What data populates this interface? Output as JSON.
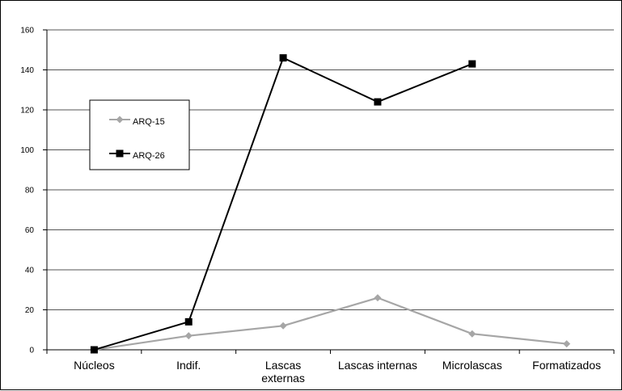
{
  "chart_data": {
    "type": "line",
    "categories": [
      "Núcleos",
      "Indif.",
      "Lascas externas",
      "Lascas internas",
      "Microlascas",
      "Formatizados"
    ],
    "category_lines": [
      [
        "Núcleos"
      ],
      [
        "Indif."
      ],
      [
        "Lascas",
        "externas"
      ],
      [
        "Lascas internas"
      ],
      [
        "Microlascas"
      ],
      [
        "Formatizados"
      ]
    ],
    "series": [
      {
        "name": "ARQ-15",
        "values": [
          0,
          7,
          12,
          26,
          8,
          3
        ],
        "color": "#a6a6a6",
        "marker": "diamond"
      },
      {
        "name": "ARQ-26",
        "values": [
          0,
          14,
          146,
          124,
          143,
          null
        ],
        "color": "#000000",
        "marker": "square"
      }
    ],
    "ylim": [
      0,
      160
    ],
    "yticks": [
      0,
      20,
      40,
      60,
      80,
      100,
      120,
      140,
      160
    ],
    "grid": true,
    "legend_position": "upper-left"
  }
}
